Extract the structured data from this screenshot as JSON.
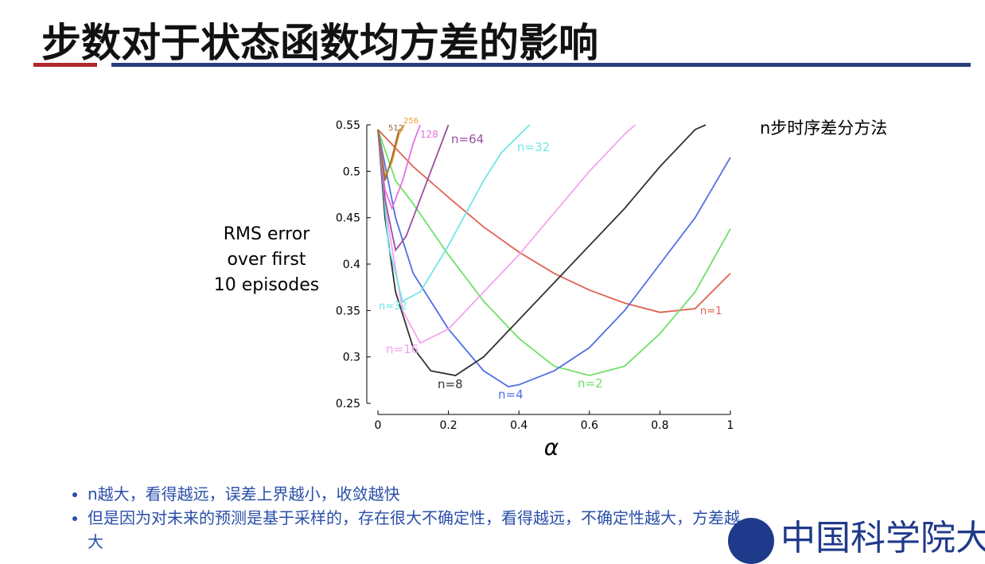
{
  "slide": {
    "title": "步数对于状态函数均方差的影响",
    "side_note": "n步时序差分方法",
    "bullets": [
      "n越大，看得越远，误差上界越小，收敛越快",
      "但是因为对未来的预测是基于采样的，存在很大不确定性，看得越远，不确定性越大，方差越大"
    ],
    "logo_text": "中国科学院大学"
  },
  "chart_data": {
    "type": "line",
    "xlabel": "α",
    "ylabel": [
      "RMS error",
      "over first",
      "10 episodes"
    ],
    "xlim": [
      0,
      1
    ],
    "ylim": [
      0.25,
      0.55
    ],
    "xticks": [
      0,
      0.2,
      0.4,
      0.6,
      0.8,
      1
    ],
    "yticks": [
      0.25,
      0.3,
      0.35,
      0.4,
      0.45,
      0.5,
      0.55
    ],
    "annotations": [
      "n=32"
    ],
    "series": [
      {
        "name": "n=1",
        "color": "#e0614f",
        "x": [
          0,
          0.1,
          0.2,
          0.3,
          0.4,
          0.5,
          0.6,
          0.7,
          0.8,
          0.9,
          1
        ],
        "values": [
          0.545,
          0.505,
          0.472,
          0.44,
          0.413,
          0.39,
          0.372,
          0.358,
          0.348,
          0.352,
          0.39
        ]
      },
      {
        "name": "n=2",
        "color": "#6fe066",
        "x": [
          0,
          0.05,
          0.1,
          0.2,
          0.3,
          0.4,
          0.5,
          0.6,
          0.7,
          0.8,
          0.9,
          1
        ],
        "values": [
          0.545,
          0.49,
          0.465,
          0.41,
          0.36,
          0.32,
          0.29,
          0.28,
          0.29,
          0.325,
          0.37,
          0.438
        ]
      },
      {
        "name": "n=4",
        "color": "#4f6fe6",
        "x": [
          0,
          0.05,
          0.1,
          0.2,
          0.3,
          0.37,
          0.4,
          0.5,
          0.6,
          0.7,
          0.8,
          0.9,
          1
        ],
        "values": [
          0.545,
          0.45,
          0.39,
          0.33,
          0.285,
          0.268,
          0.27,
          0.285,
          0.31,
          0.35,
          0.4,
          0.45,
          0.515
        ]
      },
      {
        "name": "n=8",
        "color": "#333333",
        "x": [
          0,
          0.02,
          0.05,
          0.1,
          0.15,
          0.22,
          0.3,
          0.4,
          0.5,
          0.6,
          0.7,
          0.8,
          0.9,
          0.93
        ],
        "values": [
          0.545,
          0.45,
          0.37,
          0.31,
          0.285,
          0.28,
          0.3,
          0.34,
          0.38,
          0.42,
          0.46,
          0.505,
          0.545,
          0.55
        ]
      },
      {
        "name": "n=16",
        "color": "#f4a3f0",
        "x": [
          0,
          0.03,
          0.07,
          0.12,
          0.2,
          0.3,
          0.4,
          0.5,
          0.6,
          0.7,
          0.73
        ],
        "values": [
          0.545,
          0.44,
          0.35,
          0.315,
          0.33,
          0.37,
          0.41,
          0.455,
          0.5,
          0.54,
          0.55
        ]
      },
      {
        "name": "n=32",
        "color": "#6fe6e6",
        "x": [
          0,
          0.03,
          0.07,
          0.12,
          0.2,
          0.3,
          0.35,
          0.43
        ],
        "values": [
          0.545,
          0.42,
          0.36,
          0.37,
          0.42,
          0.49,
          0.52,
          0.55
        ]
      },
      {
        "name": "n=64",
        "color": "#9b4fa0",
        "x": [
          0,
          0.02,
          0.05,
          0.08,
          0.12,
          0.16,
          0.2
        ],
        "values": [
          0.545,
          0.47,
          0.415,
          0.43,
          0.47,
          0.51,
          0.55
        ]
      },
      {
        "name": "128",
        "color": "#e870e0",
        "x": [
          0,
          0.02,
          0.04,
          0.07,
          0.1,
          0.12
        ],
        "values": [
          0.545,
          0.48,
          0.46,
          0.49,
          0.53,
          0.55
        ]
      },
      {
        "name": "256",
        "color": "#e8a030",
        "x": [
          0,
          0.02,
          0.04,
          0.06,
          0.075
        ],
        "values": [
          0.545,
          0.495,
          0.51,
          0.54,
          0.55
        ]
      },
      {
        "name": "512",
        "color": "#9a6a3a",
        "x": [
          0,
          0.02,
          0.04,
          0.06
        ],
        "values": [
          0.545,
          0.49,
          0.515,
          0.545
        ]
      }
    ]
  }
}
